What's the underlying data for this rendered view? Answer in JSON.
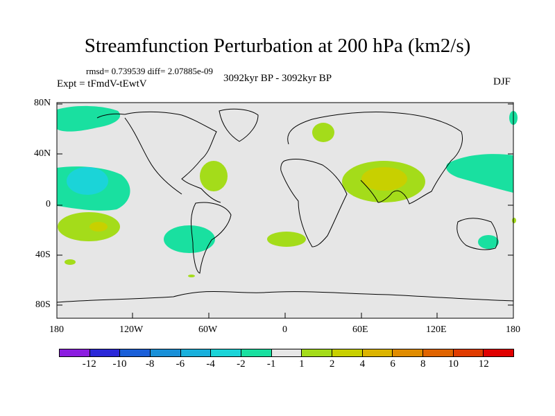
{
  "title": "Streamfunction Perturbation at 200 hPa (km2/s)",
  "stats": "rmsd= 0.739539 diff= 2.07885e-09",
  "period": "3092kyr BP - 3092kyr BP",
  "experiment": "Expt = tFmdV-tEwtV",
  "season": "DJF",
  "map": {
    "lat_ticks": [
      "80N",
      "40N",
      "0",
      "40S",
      "80S"
    ],
    "lon_ticks": [
      "180",
      "120W",
      "60W",
      "0",
      "60E",
      "120E",
      "180"
    ],
    "ocean_color": "#e6e6e6"
  },
  "colorbar": {
    "colors": [
      "#8c1de0",
      "#2b28d8",
      "#1a5fd8",
      "#1990d8",
      "#19b0dc",
      "#1bd4d8",
      "#19e0a0",
      "#e6e6e6",
      "#a4dc1a",
      "#c8d000",
      "#dcb400",
      "#e08c00",
      "#e06400",
      "#e03c00",
      "#e00000"
    ],
    "labels": [
      "-12",
      "-10",
      "-8",
      "-6",
      "-4",
      "-2",
      "-1",
      "1",
      "2",
      "4",
      "6",
      "8",
      "10",
      "12"
    ]
  }
}
